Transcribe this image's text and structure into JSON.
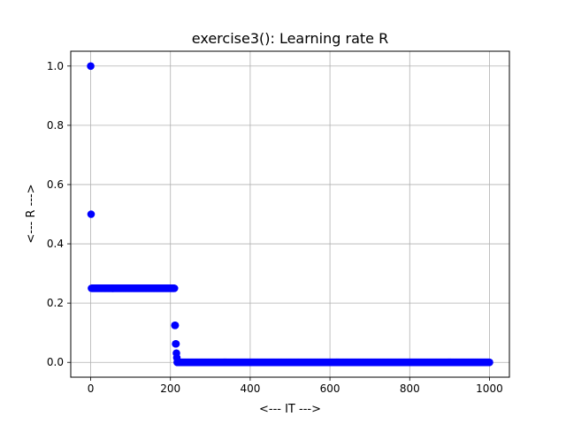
{
  "chart_data": {
    "type": "scatter",
    "title": "exercise3(): Learning rate R",
    "xlabel": "<--- IT --->",
    "ylabel": "<--- R --->",
    "xlim": [
      -50,
      1050
    ],
    "ylim": [
      -0.05,
      1.05
    ],
    "xticks": [
      0,
      200,
      400,
      600,
      800,
      1000
    ],
    "xtick_labels": [
      "0",
      "200",
      "400",
      "600",
      "800",
      "1000"
    ],
    "yticks": [
      0.0,
      0.2,
      0.4,
      0.6,
      0.8,
      1.0
    ],
    "ytick_labels": [
      "0.0",
      "0.2",
      "0.4",
      "0.6",
      "0.8",
      "1.0"
    ],
    "grid": true,
    "marker_color": "#0000ff",
    "series": [
      {
        "segments": [
          {
            "x_from": 0,
            "x_to": 0,
            "y": 1.0
          },
          {
            "x_from": 1,
            "x_to": 1,
            "y": 0.5
          },
          {
            "x_from": 2,
            "x_to": 210,
            "y": 0.25
          },
          {
            "x_from": 211,
            "x_to": 212,
            "y": 0.125
          },
          {
            "x_from": 213,
            "x_to": 214,
            "y": 0.0625
          },
          {
            "x_from": 215,
            "x_to": 215,
            "y": 0.03125
          },
          {
            "x_from": 216,
            "x_to": 216,
            "y": 0.015625
          },
          {
            "x_from": 217,
            "x_to": 1000,
            "y": 0.0
          }
        ]
      }
    ]
  }
}
